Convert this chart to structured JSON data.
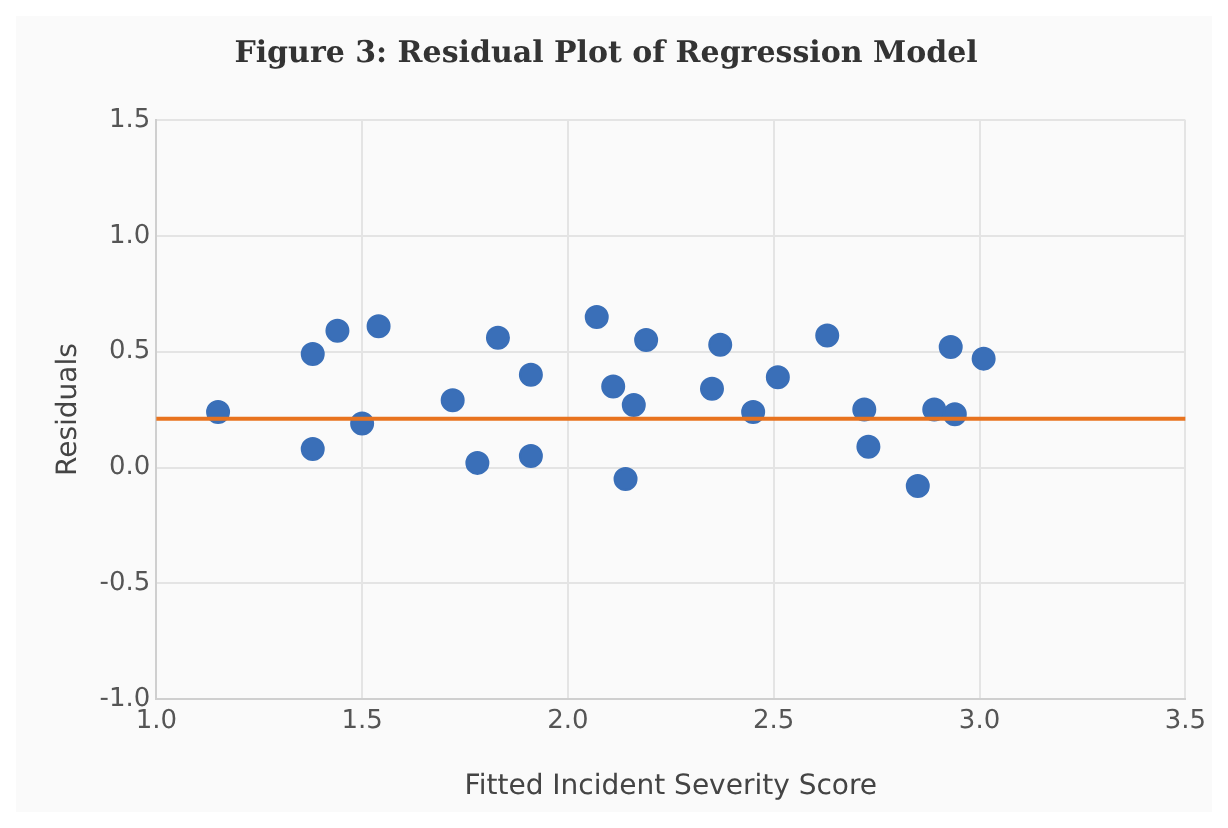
{
  "chart_data": {
    "type": "scatter",
    "title": "Figure 3: Residual Plot of Regression Model",
    "xlabel": "Fitted Incident Severity Score",
    "ylabel": "Residuals",
    "x": [
      1.15,
      1.38,
      1.44,
      1.54,
      1.38,
      1.5,
      1.72,
      1.78,
      1.83,
      1.91,
      1.91,
      2.07,
      2.11,
      2.16,
      2.14,
      2.19,
      2.35,
      2.37,
      2.45,
      2.51,
      2.63,
      2.72,
      2.73,
      2.85,
      2.89,
      2.93,
      2.94,
      3.01
    ],
    "values": [
      0.24,
      0.49,
      0.59,
      0.61,
      0.08,
      0.19,
      0.29,
      0.02,
      0.56,
      0.4,
      0.05,
      0.65,
      0.35,
      0.27,
      -0.05,
      0.55,
      0.34,
      0.53,
      0.24,
      0.39,
      0.57,
      0.25,
      0.09,
      -0.08,
      0.25,
      0.52,
      0.23,
      0.47
    ],
    "color": "#3a6fb8",
    "marker": "circle",
    "xlim": [
      1.0,
      3.5
    ],
    "xticks": [
      {
        "value": 1,
        "label": "1.0"
      },
      1.5,
      {
        "value": 2,
        "label": "2.0"
      },
      2.5,
      {
        "value": 3,
        "label": "3.0"
      },
      3.5
    ],
    "ylim": [
      -1.0,
      1.5
    ],
    "yticks": [
      {
        "value": -1,
        "label": "-1.0"
      },
      -0.5,
      {
        "value": 0,
        "label": "0.0"
      },
      0.5,
      {
        "value": 1,
        "label": "1.0"
      },
      1.5
    ],
    "ref_lines": [
      {
        "axis": "y",
        "value": 0.21,
        "color": "#e8731f",
        "line_style": "solid"
      }
    ],
    "grid": true,
    "legend": false
  }
}
